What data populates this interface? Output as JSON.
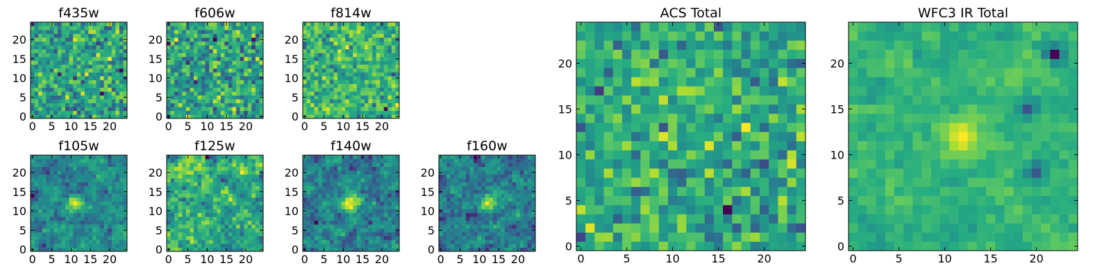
{
  "chart_data": [
    {
      "id": "p1",
      "type": "heatmap",
      "title": "f435w",
      "colormap": "viridis",
      "grid_size": [
        25,
        25
      ],
      "xlim": [
        -0.5,
        24.5
      ],
      "ylim": [
        -0.5,
        24.5
      ],
      "x_ticks": [
        "0",
        "5",
        "10",
        "15",
        "20"
      ],
      "y_ticks": [
        "0",
        "5",
        "10",
        "15",
        "20"
      ],
      "character": "white noise",
      "seed": 11
    },
    {
      "id": "p2",
      "type": "heatmap",
      "title": "f606w",
      "colormap": "viridis",
      "grid_size": [
        25,
        25
      ],
      "xlim": [
        -0.5,
        24.5
      ],
      "ylim": [
        -0.5,
        24.5
      ],
      "x_ticks": [
        "0",
        "5",
        "10",
        "15",
        "20"
      ],
      "y_ticks": [
        "0",
        "5",
        "10",
        "15",
        "20"
      ],
      "character": "white noise",
      "seed": 23
    },
    {
      "id": "p3",
      "type": "heatmap",
      "title": "f814w",
      "colormap": "viridis",
      "grid_size": [
        25,
        25
      ],
      "xlim": [
        -0.5,
        24.5
      ],
      "ylim": [
        -0.5,
        24.5
      ],
      "x_ticks": [
        "0",
        "5",
        "10",
        "15",
        "20"
      ],
      "y_ticks": [
        "0",
        "5",
        "10",
        "15",
        "20"
      ],
      "character": "white noise",
      "seed": 37
    },
    {
      "id": "p4",
      "type": "heatmap",
      "title": "f105w",
      "colormap": "viridis",
      "grid_size": [
        25,
        25
      ],
      "xlim": [
        -0.5,
        24.5
      ],
      "ylim": [
        -0.5,
        24.5
      ],
      "x_ticks": [
        "0",
        "5",
        "10",
        "15",
        "20"
      ],
      "y_ticks": [
        "0",
        "5",
        "10",
        "15",
        "20"
      ],
      "character": "correlated noise",
      "seed": 41,
      "bright_source": {
        "x": 11,
        "y": 12
      }
    },
    {
      "id": "p5",
      "type": "heatmap",
      "title": "f125w",
      "colormap": "viridis",
      "grid_size": [
        25,
        25
      ],
      "xlim": [
        -0.5,
        24.5
      ],
      "ylim": [
        -0.5,
        24.5
      ],
      "x_ticks": [
        "0",
        "5",
        "10",
        "15",
        "20"
      ],
      "y_ticks": [
        "0",
        "5",
        "10",
        "15",
        "20"
      ],
      "character": "correlated noise",
      "seed": 53
    },
    {
      "id": "p6",
      "type": "heatmap",
      "title": "f140w",
      "colormap": "viridis",
      "grid_size": [
        25,
        25
      ],
      "xlim": [
        -0.5,
        24.5
      ],
      "ylim": [
        -0.5,
        24.5
      ],
      "x_ticks": [
        "0",
        "5",
        "10",
        "15",
        "20"
      ],
      "y_ticks": [
        "0",
        "5",
        "10",
        "15",
        "20"
      ],
      "character": "correlated noise",
      "seed": 67,
      "bright_source": {
        "x": 12,
        "y": 12
      }
    },
    {
      "id": "p7",
      "type": "heatmap",
      "title": "f160w",
      "colormap": "viridis",
      "grid_size": [
        25,
        25
      ],
      "xlim": [
        -0.5,
        24.5
      ],
      "ylim": [
        -0.5,
        24.5
      ],
      "x_ticks": [
        "0",
        "5",
        "10",
        "15",
        "20"
      ],
      "y_ticks": [
        "0",
        "5",
        "10",
        "15",
        "20"
      ],
      "character": "correlated noise",
      "seed": 79,
      "bright_source": {
        "x": 12,
        "y": 12
      }
    },
    {
      "id": "p8",
      "type": "heatmap",
      "title": "ACS Total",
      "colormap": "viridis",
      "grid_size": [
        25,
        25
      ],
      "xlim": [
        -0.5,
        24.5
      ],
      "ylim": [
        -0.5,
        24.5
      ],
      "x_ticks": [
        "0",
        "5",
        "10",
        "15",
        "20"
      ],
      "y_ticks": [
        "0",
        "5",
        "10",
        "15",
        "20"
      ],
      "character": "white noise",
      "seed": 97
    },
    {
      "id": "p9",
      "type": "heatmap",
      "title": "WFC3 IR Total",
      "colormap": "viridis",
      "grid_size": [
        25,
        25
      ],
      "xlim": [
        -0.5,
        24.5
      ],
      "ylim": [
        -0.5,
        24.5
      ],
      "x_ticks": [
        "0",
        "5",
        "10",
        "15",
        "20"
      ],
      "y_ticks": [
        "0",
        "5",
        "10",
        "15",
        "20"
      ],
      "character": "correlated noise",
      "seed": 101,
      "bright_source": {
        "x": 12,
        "y": 12
      },
      "dark_spots": [
        {
          "x": 19,
          "y": 15
        },
        {
          "x": 20,
          "y": 8
        },
        {
          "x": 22,
          "y": 21
        }
      ]
    }
  ]
}
